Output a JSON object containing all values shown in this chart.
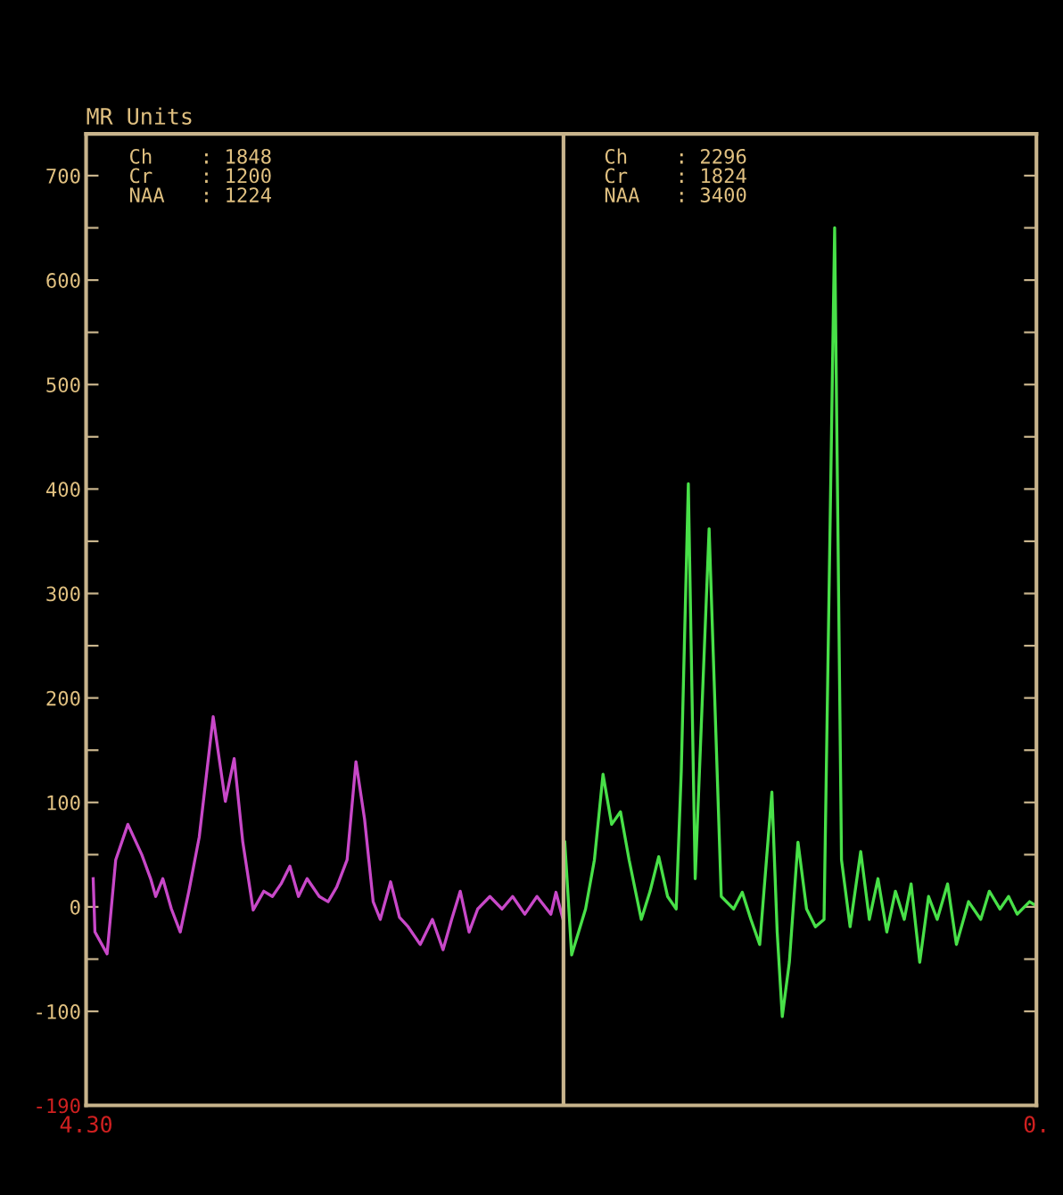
{
  "chart_data": {
    "type": "line",
    "ylabel": "MR Units",
    "annotations": [
      "Ch    : 1848\nCr    : 1200\nNAA   : 1224",
      "Ch    : 2296\nCr    : 1824\nNAA   : 3400"
    ],
    "xlim": [
      4.3,
      0
    ],
    "xticks": [
      {
        "value": 4.3,
        "label": "4.30"
      },
      {
        "value": 0,
        "label": "0."
      }
    ],
    "ylim": [
      -190,
      740
    ],
    "yticks": [
      {
        "value": -190,
        "label": "-190"
      },
      -100,
      {
        "value": -50,
        "label": null
      },
      0,
      {
        "value": 50,
        "label": null
      },
      100,
      {
        "value": 150,
        "label": null
      },
      200,
      {
        "value": 250,
        "label": null
      },
      300,
      {
        "value": 350,
        "label": null
      },
      400,
      {
        "value": 450,
        "label": null
      },
      500,
      {
        "value": 550,
        "label": null
      },
      600,
      {
        "value": 650,
        "label": null
      },
      700
    ],
    "grid": false,
    "legend": false,
    "marker": "none",
    "line_style": "solid",
    "ref_lines": [
      {
        "axis": "x",
        "value": 2.14,
        "color": "#c8b48c",
        "line_style": "solid"
      }
    ],
    "series": [
      {
        "color": "#c848c8",
        "x": [
          4.268,
          4.26,
          4.205,
          4.166,
          4.111,
          4.048,
          4.008,
          3.985,
          3.953,
          3.914,
          3.874,
          3.835,
          3.788,
          3.725,
          3.67,
          3.63,
          3.591,
          3.544,
          3.496,
          3.457,
          3.418,
          3.378,
          3.339,
          3.3,
          3.245,
          3.205,
          3.166,
          3.119,
          3.079,
          3.04,
          3.001,
          2.969,
          2.922,
          2.882,
          2.843,
          2.788,
          2.733,
          2.685,
          2.646,
          2.607,
          2.567,
          2.528,
          2.473,
          2.418,
          2.37,
          2.315,
          2.26,
          2.197,
          2.174,
          2.142
        ],
        "values": [
          27,
          -24,
          -45,
          45,
          79,
          50,
          27,
          10,
          27,
          -2,
          -24,
          15,
          67,
          182,
          101,
          142,
          62,
          -3,
          15,
          10,
          22,
          39,
          10,
          27,
          10,
          5,
          19,
          45,
          139,
          84,
          5,
          -12,
          24,
          -10,
          -19,
          -36,
          -12,
          -41,
          -12,
          15,
          -24,
          -2,
          10,
          -2,
          10,
          -7,
          10,
          -7,
          14,
          -12
        ]
      },
      {
        "color": "#48e048",
        "x": [
          2.134,
          2.103,
          2.04,
          2.0,
          1.961,
          1.922,
          1.882,
          1.843,
          1.788,
          1.748,
          1.709,
          1.669,
          1.63,
          1.607,
          1.575,
          1.544,
          1.481,
          1.426,
          1.37,
          1.331,
          1.292,
          1.252,
          1.197,
          1.173,
          1.15,
          1.118,
          1.079,
          1.04,
          1.0,
          0.961,
          0.913,
          0.882,
          0.843,
          0.795,
          0.756,
          0.717,
          0.677,
          0.638,
          0.598,
          0.567,
          0.528,
          0.488,
          0.449,
          0.402,
          0.362,
          0.307,
          0.252,
          0.213,
          0.165,
          0.126,
          0.087,
          0.031,
          0.008
        ],
        "values": [
          62,
          -46,
          -2,
          45,
          127,
          79,
          91,
          45,
          -12,
          15,
          48,
          10,
          -2,
          130,
          405,
          27,
          362,
          10,
          -2,
          14,
          -12,
          -36,
          110,
          -24,
          -105,
          -53,
          62,
          -2,
          -19,
          -12,
          650,
          45,
          -19,
          53,
          -12,
          27,
          -24,
          15,
          -12,
          22,
          -53,
          10,
          -12,
          22,
          -36,
          5,
          -12,
          15,
          -2,
          10,
          -7,
          5,
          2
        ]
      }
    ]
  }
}
